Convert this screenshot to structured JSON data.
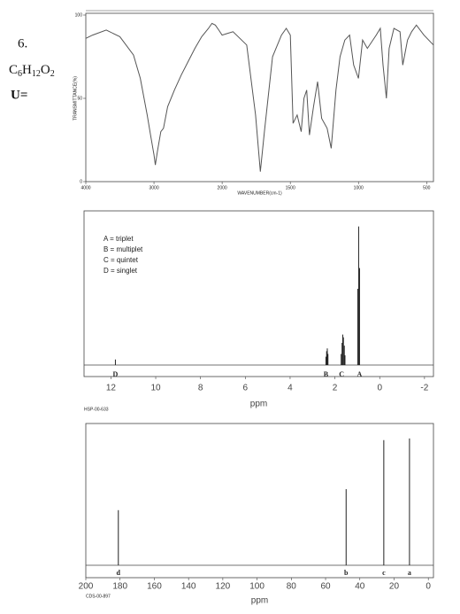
{
  "problem": {
    "number": "6.",
    "formula": "C6H12O2",
    "unsaturation_label": "U="
  },
  "chart_data": [
    {
      "type": "line",
      "color": "#555555",
      "x": [
        4000,
        3900,
        3700,
        3500,
        3300,
        3200,
        3100,
        3050,
        3000,
        2980,
        2950,
        2900,
        2860,
        2800,
        2700,
        2600,
        2500,
        2400,
        2300,
        2200,
        2150,
        2100,
        2050,
        2000,
        1920,
        1820,
        1755,
        1720,
        1690,
        1630,
        1565,
        1530,
        1500,
        1480,
        1450,
        1420,
        1400,
        1380,
        1360,
        1330,
        1300,
        1270,
        1230,
        1200,
        1165,
        1135,
        1100,
        1065,
        1035,
        1000,
        970,
        935,
        870,
        840,
        820,
        795,
        775,
        740,
        695,
        675,
        640,
        610,
        575,
        520,
        450
      ],
      "values": [
        86,
        88,
        91,
        87,
        76,
        62,
        40,
        28,
        16,
        10,
        18,
        30,
        32,
        45,
        55,
        64,
        72,
        80,
        87,
        92,
        95,
        94,
        91,
        88,
        90,
        82,
        40,
        6,
        30,
        75,
        88,
        92,
        88,
        35,
        40,
        30,
        50,
        55,
        28,
        45,
        60,
        38,
        32,
        20,
        55,
        75,
        85,
        88,
        70,
        62,
        85,
        80,
        88,
        92,
        70,
        50,
        80,
        92,
        90,
        70,
        85,
        90,
        94,
        88,
        82
      ],
      "xlim": [
        4000,
        450
      ],
      "xticks": [
        4000,
        3000,
        2000,
        1500,
        1000,
        500
      ],
      "ylim": [
        0,
        100
      ],
      "yticks": [
        0,
        50,
        100
      ],
      "xlabel": "WAVENUMBER(cm-1)",
      "ylabel": "TRANSMITTANCE(%)"
    },
    {
      "type": "stem",
      "color": "#222222",
      "x": [
        11.8,
        2.4,
        2.37,
        2.34,
        2.31,
        1.72,
        1.68,
        1.65,
        1.62,
        1.58,
        1.55,
        0.98,
        0.94,
        0.9
      ],
      "values": [
        4,
        6,
        10,
        12,
        8,
        8,
        16,
        22,
        20,
        14,
        7,
        55,
        100,
        70
      ],
      "xlim": [
        13.2,
        -2.4
      ],
      "xticks": [
        12,
        10,
        8,
        6,
        4,
        2,
        0,
        -2
      ],
      "ylim": [
        0,
        110
      ],
      "xlabel": "ppm",
      "code": "HSP-00-633",
      "notes": [
        "A = triplet",
        "B = multiplet",
        "C = quintet",
        "D = singlet"
      ],
      "annotations": [
        {
          "label": "D",
          "x": 11.8
        },
        {
          "label": "B",
          "x": 2.4
        },
        {
          "label": "C",
          "x": 1.7
        },
        {
          "label": "A",
          "x": 0.9
        }
      ]
    },
    {
      "type": "stem",
      "color": "#222222",
      "x": [
        181,
        48,
        26,
        11
      ],
      "values": [
        63,
        87,
        143,
        145
      ],
      "xlim": [
        200,
        -3
      ],
      "xticks": [
        200,
        180,
        160,
        140,
        120,
        100,
        80,
        60,
        40,
        20,
        0
      ],
      "ylim": [
        0,
        160
      ],
      "xlabel": "ppm",
      "code": "CDS-00-897",
      "annotations": [
        {
          "label": "d",
          "x": 181
        },
        {
          "label": "b",
          "x": 48
        },
        {
          "label": "c",
          "x": 26
        },
        {
          "label": "a",
          "x": 11
        }
      ]
    }
  ]
}
